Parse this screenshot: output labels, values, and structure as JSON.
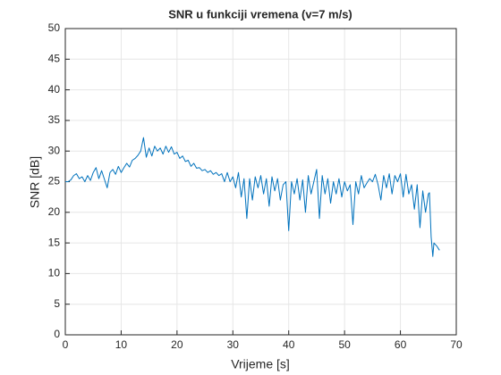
{
  "chart_data": {
    "type": "line",
    "title": "SNR u funkciji vremena (v=7 m/s)",
    "xlabel": "Vrijeme [s]",
    "ylabel": "SNR [dB]",
    "color": "#0072bd",
    "grid": true,
    "xlim": [
      0,
      70
    ],
    "xticks": [
      0,
      10,
      20,
      30,
      40,
      50,
      60,
      70
    ],
    "ylim": [
      0,
      50
    ],
    "yticks": [
      0,
      5,
      10,
      15,
      20,
      25,
      30,
      35,
      40,
      45,
      50
    ],
    "x": [
      0,
      0.5,
      1,
      1.5,
      2,
      2.5,
      3,
      3.5,
      4,
      4.5,
      5,
      5.5,
      6,
      6.5,
      7,
      7.5,
      8,
      8.5,
      9,
      9.5,
      10,
      10.5,
      11,
      11.5,
      12,
      12.5,
      13,
      13.5,
      14,
      14.5,
      15,
      15.5,
      16,
      16.5,
      17,
      17.5,
      18,
      18.5,
      19,
      19.5,
      20,
      20.5,
      21,
      21.5,
      22,
      22.5,
      23,
      23.5,
      24,
      24.5,
      25,
      25.5,
      26,
      26.5,
      27,
      27.5,
      28,
      28.5,
      29,
      29.5,
      30,
      30.5,
      31,
      31.5,
      32,
      32.5,
      33,
      33.5,
      34,
      34.5,
      35,
      35.5,
      36,
      36.5,
      37,
      37.5,
      38,
      38.5,
      39,
      39.5,
      40,
      40.5,
      41,
      41.5,
      42,
      42.5,
      43,
      43.5,
      44,
      44.5,
      45,
      45.5,
      46,
      46.5,
      47,
      47.5,
      48,
      48.5,
      49,
      49.5,
      50,
      50.5,
      51,
      51.5,
      52,
      52.5,
      53,
      53.5,
      54,
      54.5,
      55,
      55.5,
      56,
      56.5,
      57,
      57.5,
      58,
      58.5,
      59,
      59.5,
      60,
      60.5,
      61,
      61.5,
      62,
      62.5,
      63,
      63.5,
      64,
      64.5,
      65,
      65.2,
      65.5,
      65.8,
      66,
      66.5,
      67
    ],
    "values": [
      25,
      25,
      25.3,
      26,
      26.3,
      25.5,
      25.8,
      25,
      26,
      25.2,
      26.5,
      27.3,
      25.5,
      26.8,
      25.4,
      24,
      26.5,
      27,
      26.2,
      27.5,
      26.5,
      27.3,
      28,
      27.4,
      28.5,
      28.8,
      29.3,
      30,
      32.2,
      29,
      30.5,
      29.2,
      30.8,
      30,
      30.5,
      29.5,
      30.8,
      29.8,
      30.7,
      29.5,
      29.8,
      28.8,
      29.2,
      28.3,
      28.5,
      27.5,
      28,
      27.2,
      27.3,
      26.8,
      27,
      26.5,
      26.8,
      26.2,
      26.5,
      26,
      26.3,
      25,
      26.5,
      25,
      25.8,
      24,
      26.5,
      22.5,
      25.5,
      19,
      25.5,
      22,
      25.8,
      24,
      26,
      23,
      25.5,
      21,
      25.8,
      23.5,
      25.5,
      22,
      24.5,
      25,
      17,
      25,
      23,
      25.5,
      22,
      25.3,
      20,
      26,
      23,
      25,
      27,
      19,
      26,
      23,
      25.5,
      21.5,
      25,
      23,
      25.5,
      22.5,
      25,
      23.5,
      24.5,
      18,
      25,
      23,
      26,
      24,
      24.8,
      25.5,
      25,
      26.2,
      24.5,
      22,
      26,
      24,
      26.3,
      23,
      26,
      25,
      26.3,
      22.5,
      26.2,
      23,
      24.5,
      20.5,
      24.5,
      17.5,
      23.5,
      20,
      23,
      23.2,
      16,
      12.8,
      15,
      14.5,
      13.8
    ]
  }
}
